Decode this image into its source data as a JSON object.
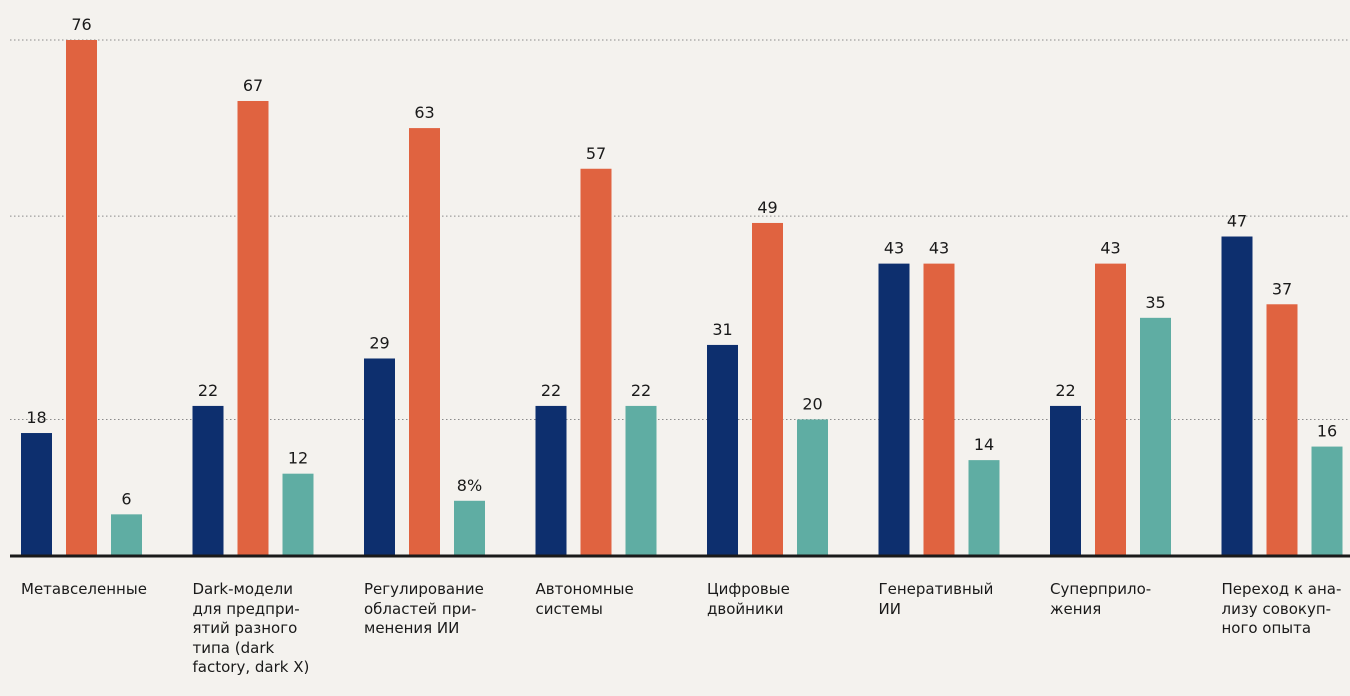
{
  "chart_data": {
    "type": "bar",
    "categories": [
      "Метавселенные",
      "Dark-модели\nдля предпри-\nятий разного\nтипа (dark\nfactory, dark X)",
      "Регулирование\nобластей при-\nменения ИИ",
      "Автономные\nсистемы",
      "Цифровые\nдвойники",
      "Генеративный\nИИ",
      "Суперприло-\nжения",
      "Переход к ана-\nлизу совокуп-\nного опыта"
    ],
    "series": [
      {
        "color": "#0d2f6e",
        "values": [
          18,
          22,
          29,
          22,
          31,
          43,
          22,
          47
        ],
        "labels": [
          "18",
          "22",
          "29",
          "22",
          "31",
          "43",
          "22",
          "47"
        ]
      },
      {
        "color": "#e06340",
        "values": [
          76,
          67,
          63,
          57,
          49,
          43,
          43,
          37
        ],
        "labels": [
          "76",
          "67",
          "63",
          "57",
          "49",
          "43",
          "43",
          "37"
        ]
      },
      {
        "color": "#5fada3",
        "values": [
          6,
          12,
          8,
          22,
          20,
          14,
          35,
          16
        ],
        "labels": [
          "6",
          "12",
          "8%",
          "22",
          "20",
          "14",
          "35",
          "16"
        ]
      }
    ],
    "ylim": [
      0,
      80
    ],
    "gridlines": [
      20,
      50,
      76
    ],
    "grid_style": "dotted",
    "legend": "none"
  }
}
